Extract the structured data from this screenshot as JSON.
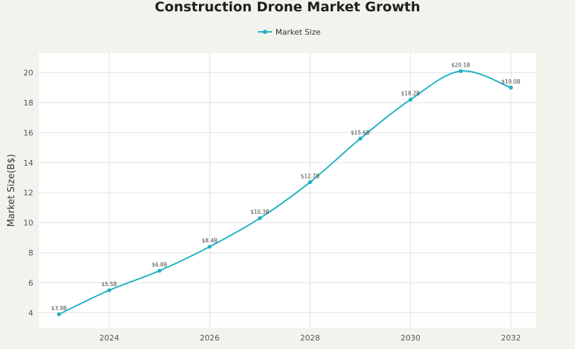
{
  "chart_data": {
    "type": "line",
    "title": "Construction Drone Market Growth",
    "xlabel": "",
    "ylabel": "Market Size(B$)",
    "x": [
      2023,
      2024,
      2025,
      2026,
      2027,
      2028,
      2029,
      2030,
      2031,
      2032
    ],
    "xlim": [
      2022.6,
      2032.5
    ],
    "ylim": [
      3.0,
      21.3
    ],
    "xticks": [
      2024,
      2026,
      2028,
      2030,
      2032
    ],
    "yticks": [
      4,
      6,
      8,
      10,
      12,
      14,
      16,
      18,
      20
    ],
    "grid": true,
    "legend_position": "top-center",
    "series": [
      {
        "name": "Market Size",
        "color": "#1fb1c1",
        "values": [
          3.9,
          5.5,
          6.8,
          8.4,
          10.3,
          12.7,
          15.6,
          18.2,
          20.1,
          19.0
        ],
        "labels": [
          "$3.9B",
          "$5.5B",
          "$6.8B",
          "$8.4B",
          "$10.3B",
          "$12.7B",
          "$15.6B",
          "$18.2B",
          "$20.1B",
          "$19.0B"
        ]
      }
    ]
  }
}
